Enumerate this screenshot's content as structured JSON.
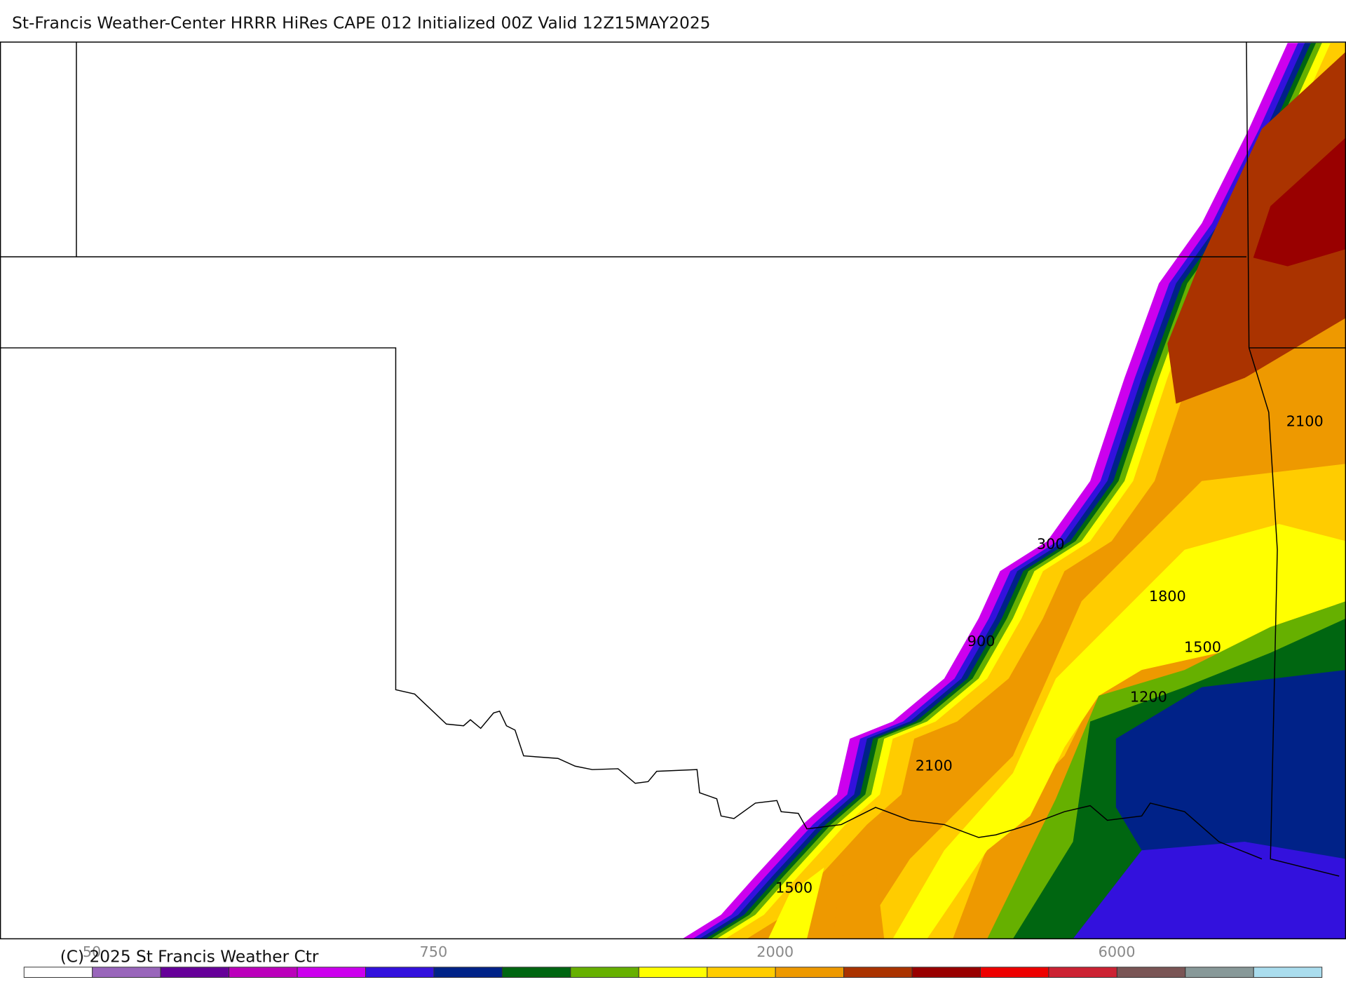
{
  "title": "St-Francis Weather-Center HRRR HiRes CAPE  012 Initialized  00Z Valid 12Z15MAY2025",
  "copyright": "(C) 2025 St Francis Weather Ctr",
  "contour_labels": [
    "2100",
    "300",
    "1800",
    "900",
    "1500",
    "1200",
    "2100",
    "1500"
  ],
  "colorbar": {
    "colors": [
      "#ffffff",
      "#9966bb",
      "#660099",
      "#bb00bb",
      "#cc00ee",
      "#3311dd",
      "#002288",
      "#006611",
      "#66b000",
      "#ffff00",
      "#ffcc00",
      "#ee9900",
      "#aa3300",
      "#990000",
      "#ee0000",
      "#cc2233",
      "#7a5555",
      "#889999",
      "#aaddee"
    ],
    "labels": [
      "50",
      "750",
      "2000",
      "6000"
    ]
  }
}
